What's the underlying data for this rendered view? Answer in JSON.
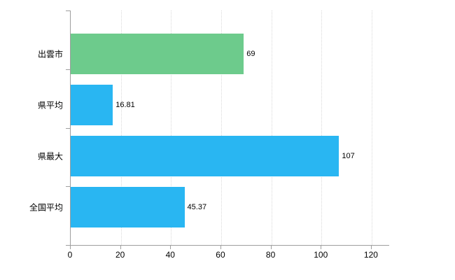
{
  "chart": {
    "background": "#ffffff",
    "axis_color": "#9e9e9e",
    "grid_color": "#d9d9d9",
    "label_color": "#000000"
  },
  "chart_data": {
    "type": "bar",
    "orientation": "horizontal",
    "title": "",
    "xlabel": "",
    "ylabel": "",
    "categories": [
      "出雲市",
      "県平均",
      "県最大",
      "全国平均"
    ],
    "values": [
      69,
      16.81,
      107,
      45.37
    ],
    "value_labels": [
      "69",
      "16.81",
      "107",
      "45.37"
    ],
    "bar_colors": [
      "#6dcb8c",
      "#29b6f2",
      "#29b6f2",
      "#29b6f2"
    ],
    "xlim": [
      0,
      127
    ],
    "x_ticks": [
      0,
      20,
      40,
      60,
      80,
      100,
      120
    ],
    "grid": true,
    "legend": false
  }
}
